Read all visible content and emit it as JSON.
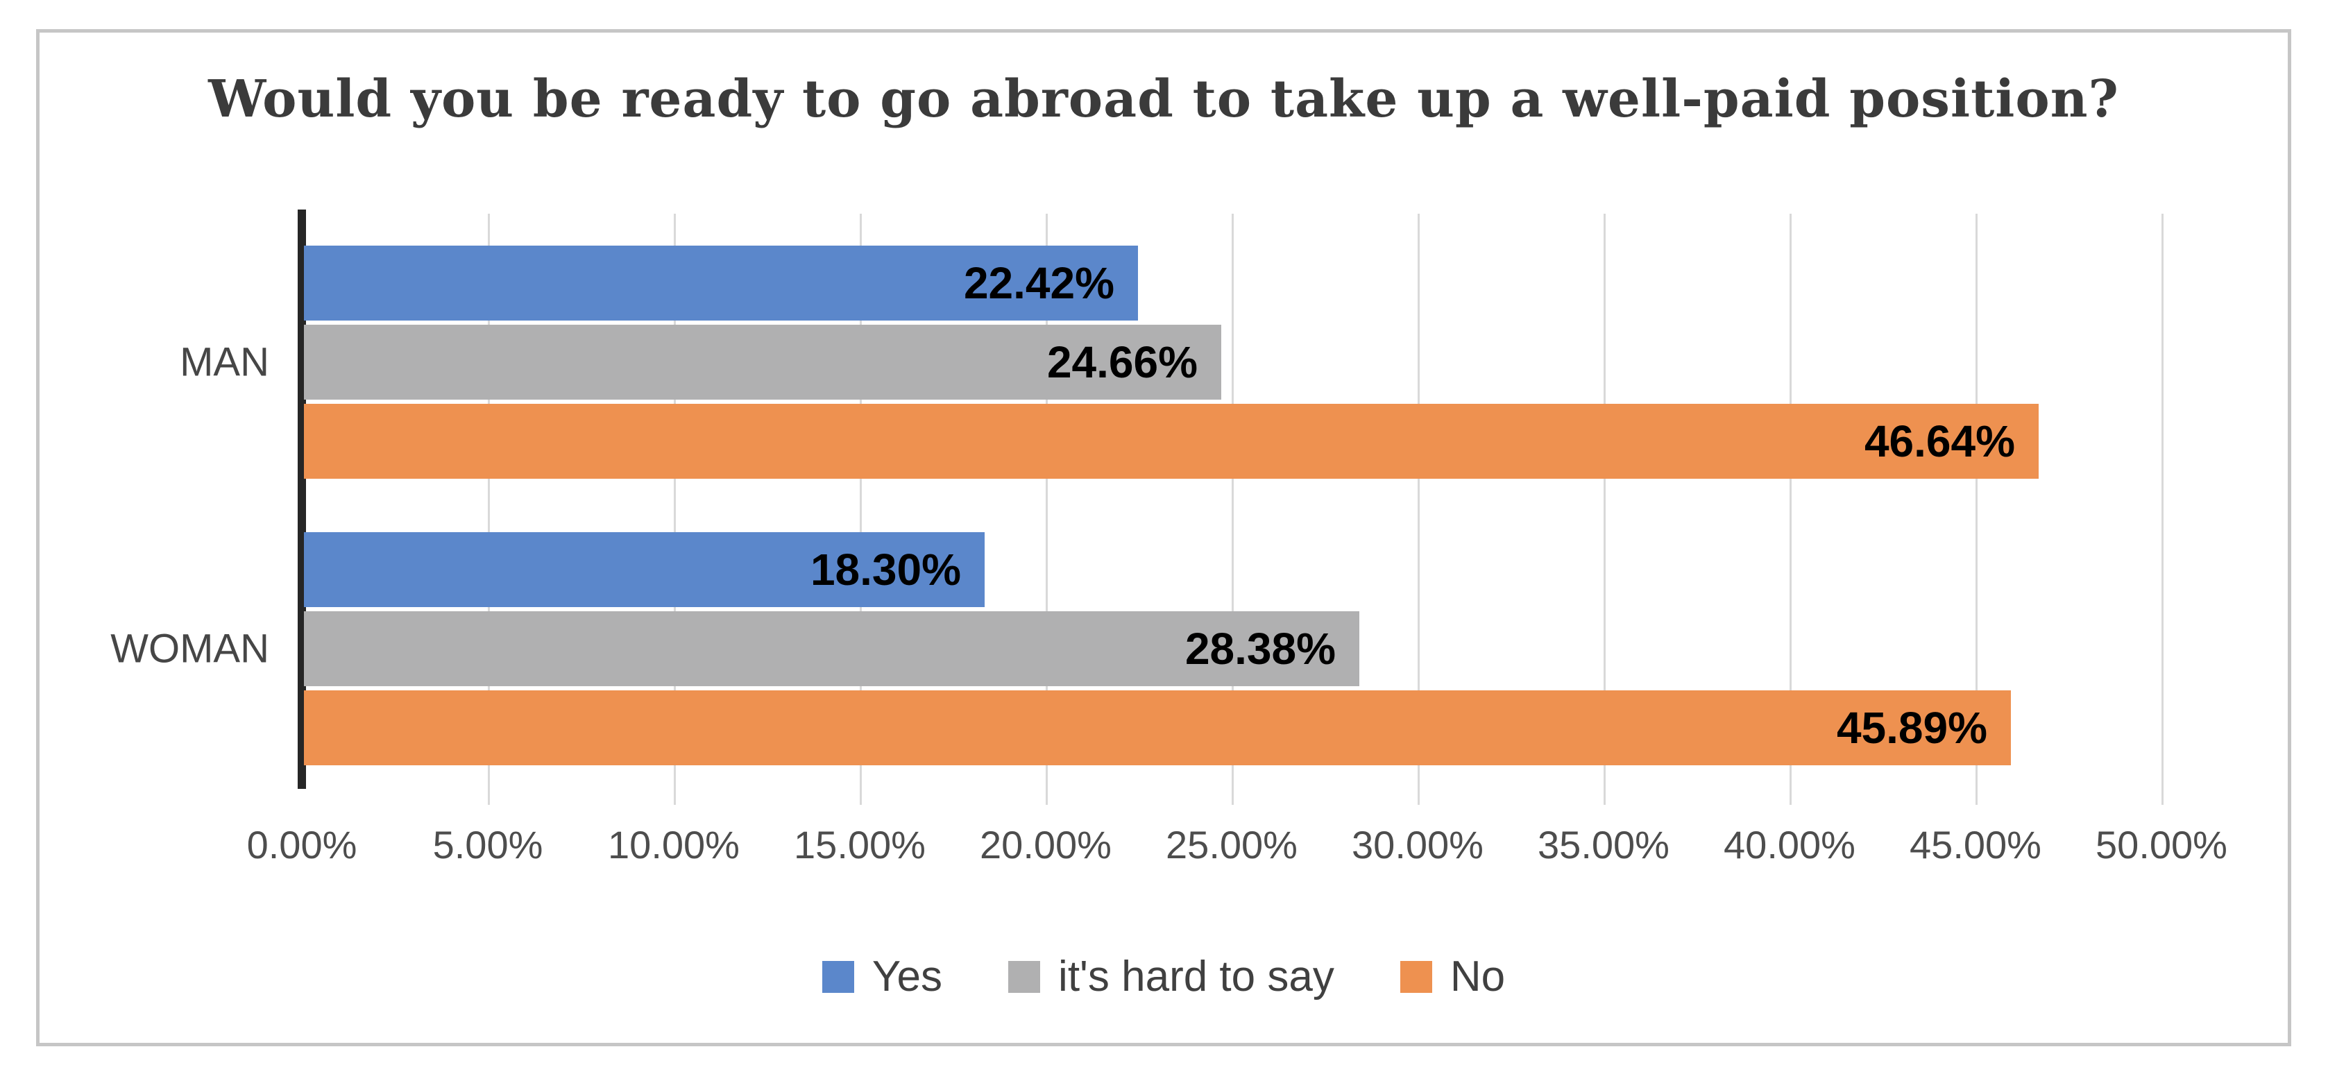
{
  "chart_data": {
    "type": "bar",
    "orientation": "horizontal",
    "title": "Would you be ready to go abroad to take up a well-paid position?",
    "categories": [
      "MAN",
      "WOMAN"
    ],
    "series": [
      {
        "name": "Yes",
        "color": "#5b87cb",
        "values": [
          22.42,
          18.3
        ],
        "labels": [
          "22.42%",
          "18.30%"
        ]
      },
      {
        "name": "it's hard to say",
        "color": "#b0b0b1",
        "values": [
          24.66,
          28.38
        ],
        "labels": [
          "24.66%",
          "28.38%"
        ]
      },
      {
        "name": "No",
        "color": "#ee9150",
        "values": [
          46.64,
          45.89
        ],
        "labels": [
          "46.64%",
          "45.89%"
        ]
      }
    ],
    "xlabel": "",
    "ylabel": "",
    "xlim": [
      0,
      50
    ],
    "x_ticks": [
      "0.00%",
      "5.00%",
      "10.00%",
      "15.00%",
      "20.00%",
      "25.00%",
      "30.00%",
      "35.00%",
      "40.00%",
      "45.00%",
      "50.00%"
    ],
    "grid": true,
    "data_labels_position": "inside-end",
    "legend_position": "bottom",
    "legend": [
      "Yes",
      "it's hard to say",
      "No"
    ],
    "style": {
      "axis_color": "#262626",
      "gridline_color": "#d9d9d9",
      "frame_border_color": "#c6c6c6",
      "title_color": "#3b3b3b",
      "tick_label_color": "#4d4d4d",
      "data_label_color": "#000000"
    }
  }
}
